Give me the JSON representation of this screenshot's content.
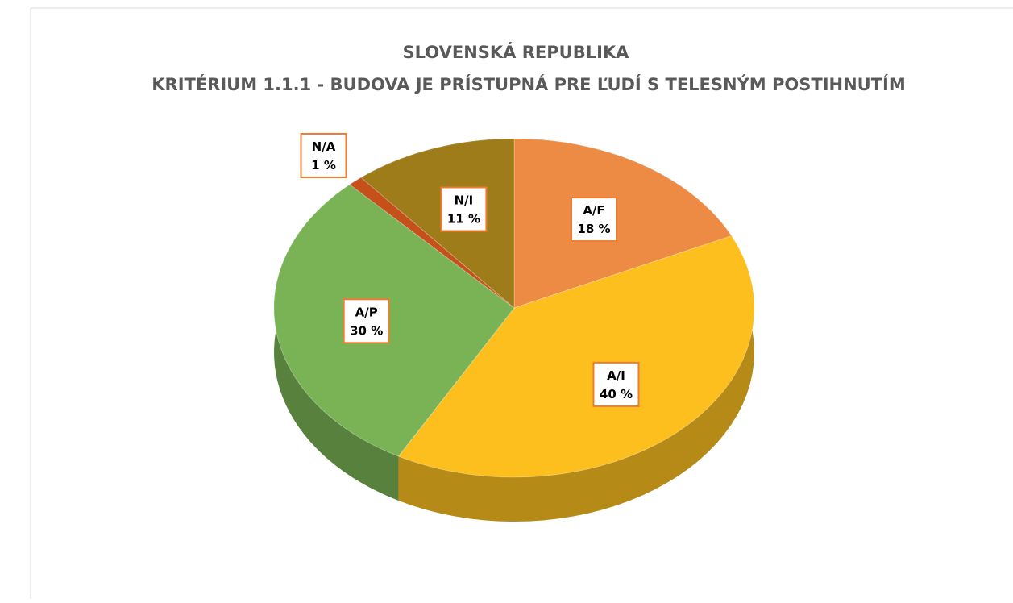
{
  "chart_data": {
    "type": "pie",
    "title": "SLOVENSKÁ REPUBLIKA",
    "subtitle": "KRITÉRIUM 1.1.1 - BUDOVA JE PRÍSTUPNÁ PRE ĽUDÍ S TELESNÝM POSTIHNUTÍM",
    "categories": [
      "A/F",
      "A/I",
      "A/P",
      "N/A",
      "N/I"
    ],
    "values": [
      18,
      40,
      30,
      1,
      11
    ],
    "value_labels": [
      "18 %",
      "40 %",
      "30 %",
      "1 %",
      "11 %"
    ],
    "colors": [
      "#ed8b45",
      "#fcbf1e",
      "#7ab356",
      "#c5501a",
      "#9e7c1a"
    ]
  }
}
